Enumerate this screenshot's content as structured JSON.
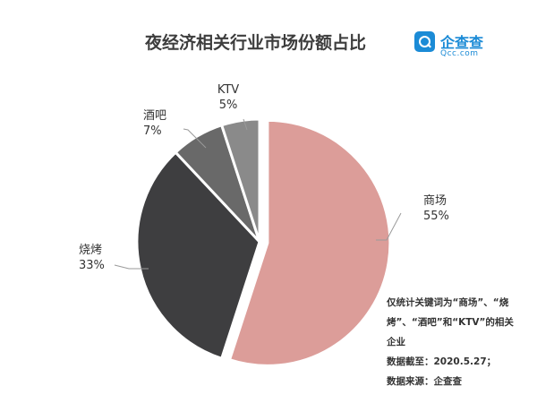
{
  "header": {
    "title": "夜经济相关行业市场份额占比"
  },
  "logo": {
    "name": "企查查",
    "domain": "Qcc.com"
  },
  "notes": [
    "仅统计关键词为“商场”、“烧",
    "烤”、“酒吧”和“KTV”的相关",
    "企业",
    "数据截至：2020.5.27；",
    "数据来源：企查查"
  ],
  "chart_data": {
    "type": "pie",
    "title": "夜经济相关行业市场份额占比",
    "slices": [
      {
        "label": "商场",
        "value": 55,
        "value_label": "55%",
        "color": "#dc9d99",
        "exploded": true
      },
      {
        "label": "烧烤",
        "value": 33,
        "value_label": "33%",
        "color": "#3e3e40"
      },
      {
        "label": "酒吧",
        "value": 7,
        "value_label": "7%",
        "color": "#696969"
      },
      {
        "label": "KTV",
        "value": 5,
        "value_label": "5%",
        "color": "#8a8a8a"
      }
    ]
  }
}
